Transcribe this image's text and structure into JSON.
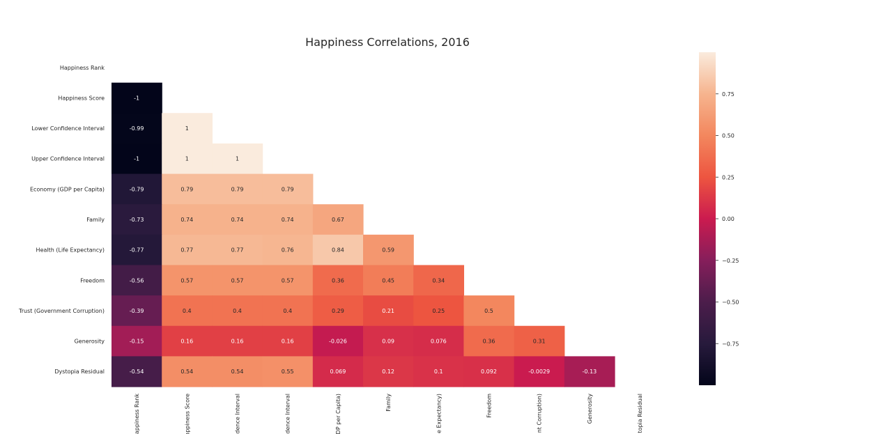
{
  "chart_data": {
    "type": "heatmap",
    "title": "Happiness Correlations, 2016",
    "variables": [
      "Happiness Rank",
      "Happiness Score",
      "Lower Confidence Interval",
      "Upper Confidence Interval",
      "Economy (GDP per Capita)",
      "Family",
      "Health (Life Expectancy)",
      "Freedom",
      "Trust (Government Corruption)",
      "Generosity",
      "Dystopia Residual"
    ],
    "x_tick_labels_visible": [
      "appiness Rank",
      "appiness Score",
      "dence Interval",
      "dence Interval",
      "DP per Capita)",
      "Family",
      "e Expectancy)",
      "Freedom",
      "nt Corruption)",
      "Generosity",
      "topia Residual"
    ],
    "mask": "upper triangle incl. diagonal",
    "lower_triangle": [
      [],
      [
        "-1"
      ],
      [
        "-0.99",
        "1"
      ],
      [
        "-1",
        "1",
        "1"
      ],
      [
        "-0.79",
        "0.79",
        "0.79",
        "0.79"
      ],
      [
        "-0.73",
        "0.74",
        "0.74",
        "0.74",
        "0.67"
      ],
      [
        "-0.77",
        "0.77",
        "0.77",
        "0.76",
        "0.84",
        "0.59"
      ],
      [
        "-0.56",
        "0.57",
        "0.57",
        "0.57",
        "0.36",
        "0.45",
        "0.34"
      ],
      [
        "-0.39",
        "0.4",
        "0.4",
        "0.4",
        "0.29",
        "0.21",
        "0.25",
        "0.5"
      ],
      [
        "-0.15",
        "0.16",
        "0.16",
        "0.16",
        "-0.026",
        "0.09",
        "0.076",
        "0.36",
        "0.31"
      ],
      [
        "-0.54",
        "0.54",
        "0.54",
        "0.55",
        "0.069",
        "0.12",
        "0.1",
        "0.092",
        "-0.0029",
        "-0.13"
      ]
    ],
    "colormap": "rocket",
    "colorbar": {
      "range": [
        -1,
        1
      ],
      "ticks": [
        0.75,
        0.5,
        0.25,
        0.0,
        -0.25,
        -0.5,
        -0.75
      ],
      "tick_labels": [
        "0.75",
        "0.50",
        "0.25",
        "0.00",
        "−0.25",
        "−0.50",
        "−0.75"
      ],
      "placement": "right"
    }
  }
}
